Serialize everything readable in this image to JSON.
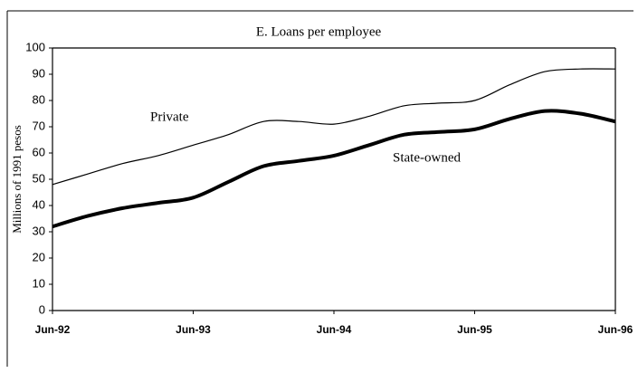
{
  "chart_data": {
    "type": "line",
    "title": "E. Loans per employee",
    "y_label": "Millions of 1991 pesos",
    "categories": [
      "Jun-92",
      null,
      null,
      null,
      "Jun-93",
      null,
      null,
      null,
      "Jun-94",
      null,
      null,
      null,
      "Jun-95",
      null,
      null,
      null,
      "Jun-96"
    ],
    "series": [
      {
        "name": "Private",
        "color": "#000000",
        "width": 1.2,
        "values": [
          48,
          52,
          56,
          59,
          63,
          67,
          72,
          72,
          71,
          74,
          78,
          79,
          80,
          86,
          91,
          92,
          92
        ]
      },
      {
        "name": "State-owned",
        "color": "#000000",
        "width": 4,
        "values": [
          32,
          36,
          39,
          41,
          43,
          49,
          55,
          57,
          59,
          63,
          67,
          68,
          69,
          73,
          76,
          75,
          72
        ]
      }
    ],
    "ylim": [
      0,
      100
    ],
    "yticks": [
      0,
      10,
      20,
      30,
      40,
      50,
      60,
      70,
      80,
      90,
      100
    ],
    "grid": false
  }
}
